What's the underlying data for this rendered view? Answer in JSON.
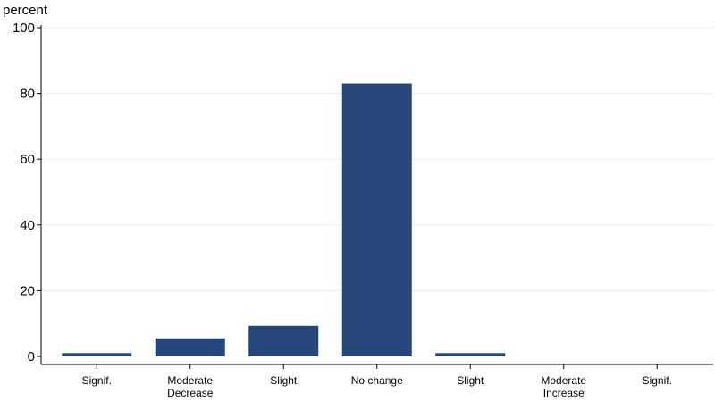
{
  "chart_data": {
    "type": "bar",
    "ylabel": "percent",
    "ylim": [
      0,
      100
    ],
    "yticks": [
      0,
      20,
      40,
      60,
      80,
      100
    ],
    "grid": true,
    "categories": [
      [
        "Signif."
      ],
      [
        "Moderate",
        "Decrease"
      ],
      [
        "Slight"
      ],
      [
        "No change"
      ],
      [
        "Slight"
      ],
      [
        "Moderate",
        "Increase"
      ],
      [
        "Signif."
      ]
    ],
    "values": [
      1,
      5.5,
      9.3,
      83,
      1,
      0,
      0
    ],
    "colors": {
      "bar": "#26467a",
      "grid": "#ececec",
      "axis": "#000000"
    }
  }
}
